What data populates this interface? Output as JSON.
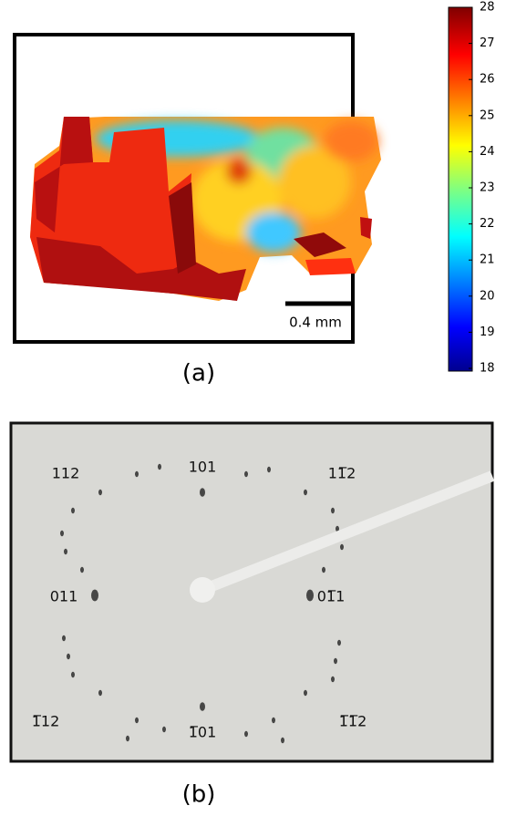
{
  "panel_a": {
    "label": "(a)",
    "scale_bar": "0.4 mm",
    "colorbar": {
      "range": [
        18,
        28
      ],
      "ticks": [
        18,
        19,
        20,
        21,
        22,
        23,
        24,
        25,
        26,
        27,
        28
      ]
    }
  },
  "panel_b": {
    "label": "(b)",
    "reflections": [
      "112",
      "101",
      "11̅2",
      "011",
      "01̅1",
      "1̅12",
      "1̅01",
      "1̅1̅2"
    ]
  }
}
